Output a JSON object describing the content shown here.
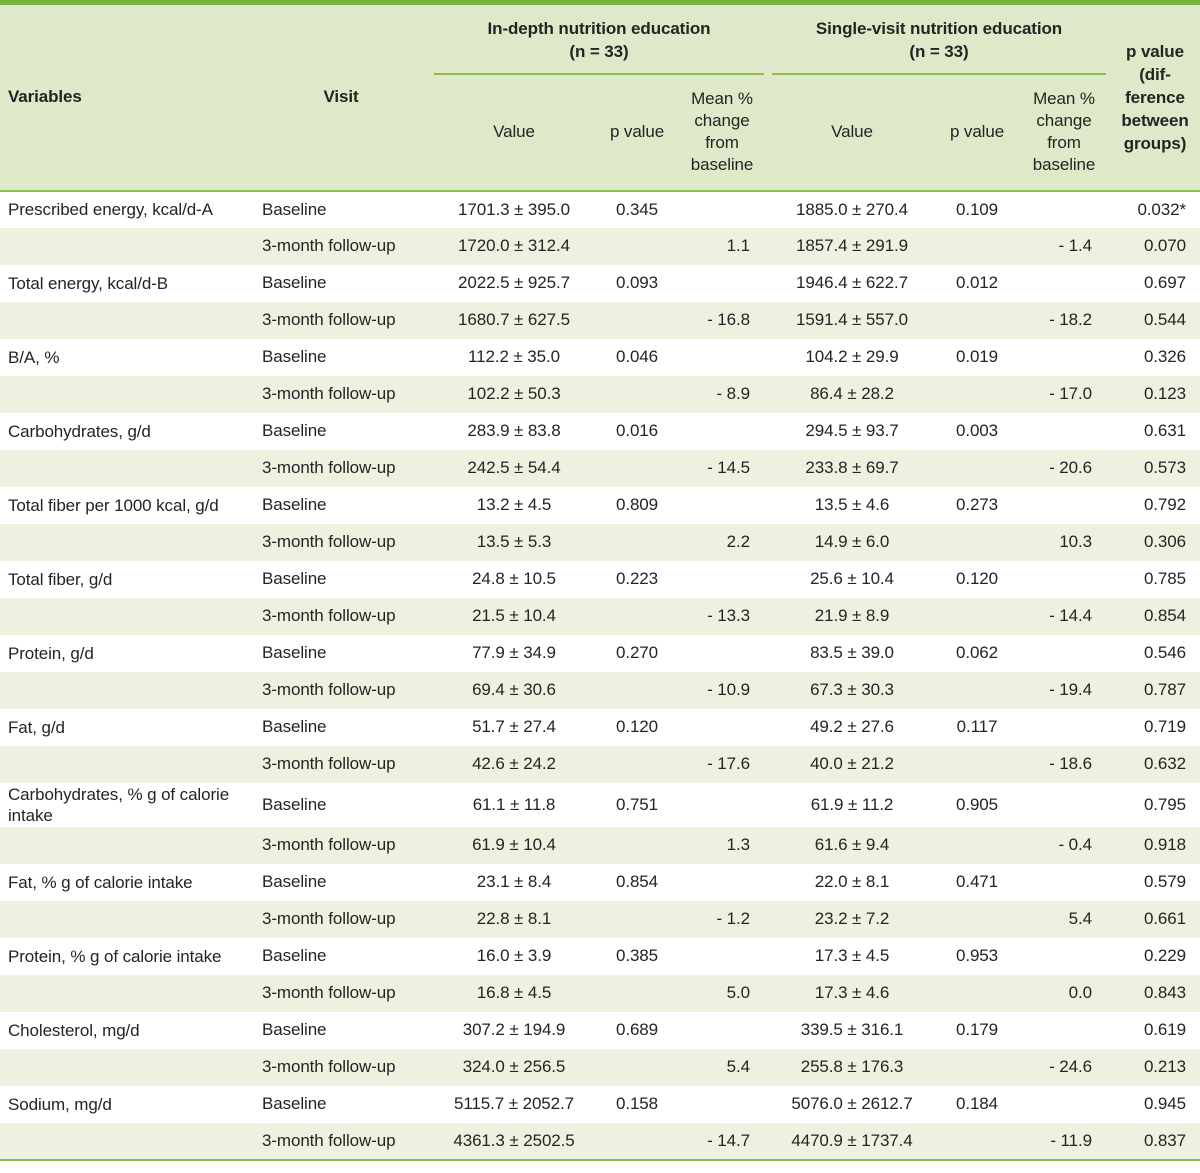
{
  "colors": {
    "accent_green": "#76b33f",
    "line_green": "#8cbf4a",
    "header_bg": "#dfe8c8",
    "row_alt_bg": "#edf2e0",
    "text": "#242424"
  },
  "table": {
    "header": {
      "variables": "Variables",
      "visit": "Visit",
      "group1": {
        "title": "In-depth nutrition education",
        "n": "(n = 33)"
      },
      "group2": {
        "title": "Single-visit nutrition education",
        "n": "(n = 33)"
      },
      "sub": {
        "value": "Value",
        "p": "p value",
        "change": "Mean % change from baseline"
      },
      "p_diff": "p value (dif-ference between groups)"
    },
    "rows": [
      {
        "variable": "Prescribed energy, kcal/d-A",
        "visit": "Baseline",
        "v1": "1701.3 ± 395.0",
        "p1": "0.345",
        "c1": "",
        "v2": "1885.0 ± 270.4",
        "p2": "0.109",
        "c2": "",
        "pd": "0.032*"
      },
      {
        "variable": "",
        "visit": "3-month follow-up",
        "v1": "1720.0 ± 312.4",
        "p1": "",
        "c1": "1.1",
        "v2": "1857.4 ± 291.9",
        "p2": "",
        "c2": "- 1.4",
        "pd": "0.070"
      },
      {
        "variable": "Total energy, kcal/d-B",
        "visit": "Baseline",
        "v1": "2022.5 ± 925.7",
        "p1": "0.093",
        "c1": "",
        "v2": "1946.4 ± 622.7",
        "p2": "0.012",
        "c2": "",
        "pd": "0.697"
      },
      {
        "variable": "",
        "visit": "3-month follow-up",
        "v1": "1680.7 ± 627.5",
        "p1": "",
        "c1": "- 16.8",
        "v2": "1591.4 ± 557.0",
        "p2": "",
        "c2": "- 18.2",
        "pd": "0.544"
      },
      {
        "variable": "B/A, %",
        "visit": "Baseline",
        "v1": "112.2 ± 35.0",
        "p1": "0.046",
        "c1": "",
        "v2": "104.2 ± 29.9",
        "p2": "0.019",
        "c2": "",
        "pd": "0.326"
      },
      {
        "variable": "",
        "visit": "3-month follow-up",
        "v1": "102.2 ± 50.3",
        "p1": "",
        "c1": "- 8.9",
        "v2": "86.4 ± 28.2",
        "p2": "",
        "c2": "- 17.0",
        "pd": "0.123"
      },
      {
        "variable": "Carbohydrates, g/d",
        "visit": "Baseline",
        "v1": "283.9 ± 83.8",
        "p1": "0.016",
        "c1": "",
        "v2": "294.5 ± 93.7",
        "p2": "0.003",
        "c2": "",
        "pd": "0.631"
      },
      {
        "variable": "",
        "visit": "3-month follow-up",
        "v1": "242.5 ± 54.4",
        "p1": "",
        "c1": "- 14.5",
        "v2": "233.8 ± 69.7",
        "p2": "",
        "c2": "- 20.6",
        "pd": "0.573"
      },
      {
        "variable": "Total fiber per 1000 kcal, g/d",
        "visit": "Baseline",
        "v1": "13.2 ± 4.5",
        "p1": "0.809",
        "c1": "",
        "v2": "13.5 ± 4.6",
        "p2": "0.273",
        "c2": "",
        "pd": "0.792"
      },
      {
        "variable": "",
        "visit": "3-month follow-up",
        "v1": "13.5 ± 5.3",
        "p1": "",
        "c1": "2.2",
        "v2": "14.9 ± 6.0",
        "p2": "",
        "c2": "10.3",
        "pd": "0.306"
      },
      {
        "variable": "Total fiber, g/d",
        "visit": "Baseline",
        "v1": "24.8 ± 10.5",
        "p1": "0.223",
        "c1": "",
        "v2": "25.6 ± 10.4",
        "p2": "0.120",
        "c2": "",
        "pd": "0.785"
      },
      {
        "variable": "",
        "visit": "3-month follow-up",
        "v1": "21.5 ± 10.4",
        "p1": "",
        "c1": "- 13.3",
        "v2": "21.9 ± 8.9",
        "p2": "",
        "c2": "- 14.4",
        "pd": "0.854"
      },
      {
        "variable": "Protein, g/d",
        "visit": "Baseline",
        "v1": "77.9 ± 34.9",
        "p1": "0.270",
        "c1": "",
        "v2": "83.5 ± 39.0",
        "p2": "0.062",
        "c2": "",
        "pd": "0.546"
      },
      {
        "variable": "",
        "visit": "3-month follow-up",
        "v1": "69.4 ± 30.6",
        "p1": "",
        "c1": "- 10.9",
        "v2": "67.3 ± 30.3",
        "p2": "",
        "c2": "- 19.4",
        "pd": "0.787"
      },
      {
        "variable": "Fat, g/d",
        "visit": "Baseline",
        "v1": "51.7 ± 27.4",
        "p1": "0.120",
        "c1": "",
        "v2": "49.2 ± 27.6",
        "p2": "0.117",
        "c2": "",
        "pd": "0.719"
      },
      {
        "variable": "",
        "visit": "3-month follow-up",
        "v1": "42.6 ± 24.2",
        "p1": "",
        "c1": "- 17.6",
        "v2": "40.0 ± 21.2",
        "p2": "",
        "c2": "- 18.6",
        "pd": "0.632"
      },
      {
        "variable": "Carbohydrates, % g of calorie intake",
        "visit": "Baseline",
        "v1": "61.1 ± 11.8",
        "p1": "0.751",
        "c1": "",
        "v2": "61.9 ± 11.2",
        "p2": "0.905",
        "c2": "",
        "pd": "0.795"
      },
      {
        "variable": "",
        "visit": "3-month follow-up",
        "v1": "61.9 ± 10.4",
        "p1": "",
        "c1": "1.3",
        "v2": "61.6 ± 9.4",
        "p2": "",
        "c2": "- 0.4",
        "pd": "0.918"
      },
      {
        "variable": "Fat, % g of calorie intake",
        "visit": "Baseline",
        "v1": "23.1 ± 8.4",
        "p1": "0.854",
        "c1": "",
        "v2": "22.0 ± 8.1",
        "p2": "0.471",
        "c2": "",
        "pd": "0.579"
      },
      {
        "variable": "",
        "visit": "3-month follow-up",
        "v1": "22.8 ± 8.1",
        "p1": "",
        "c1": "- 1.2",
        "v2": "23.2 ± 7.2",
        "p2": "",
        "c2": "5.4",
        "pd": "0.661"
      },
      {
        "variable": "Protein, % g of calorie intake",
        "visit": "Baseline",
        "v1": "16.0 ± 3.9",
        "p1": "0.385",
        "c1": "",
        "v2": "17.3 ± 4.5",
        "p2": "0.953",
        "c2": "",
        "pd": "0.229"
      },
      {
        "variable": "",
        "visit": "3-month follow-up",
        "v1": "16.8 ± 4.5",
        "p1": "",
        "c1": "5.0",
        "v2": "17.3 ± 4.6",
        "p2": "",
        "c2": "0.0",
        "pd": "0.843"
      },
      {
        "variable": "Cholesterol, mg/d",
        "visit": "Baseline",
        "v1": "307.2 ± 194.9",
        "p1": "0.689",
        "c1": "",
        "v2": "339.5 ± 316.1",
        "p2": "0.179",
        "c2": "",
        "pd": "0.619"
      },
      {
        "variable": "",
        "visit": "3-month follow-up",
        "v1": "324.0 ± 256.5",
        "p1": "",
        "c1": "5.4",
        "v2": "255.8 ± 176.3",
        "p2": "",
        "c2": "- 24.6",
        "pd": "0.213"
      },
      {
        "variable": "Sodium, mg/d",
        "visit": "Baseline",
        "v1": "5115.7 ± 2052.7",
        "p1": "0.158",
        "c1": "",
        "v2": "5076.0 ± 2612.7",
        "p2": "0.184",
        "c2": "",
        "pd": "0.945"
      },
      {
        "variable": "",
        "visit": "3-month follow-up",
        "v1": "4361.3 ± 2502.5",
        "p1": "",
        "c1": "- 14.7",
        "v2": "4470.9 ± 1737.4",
        "p2": "",
        "c2": "- 11.9",
        "pd": "0.837"
      }
    ]
  }
}
